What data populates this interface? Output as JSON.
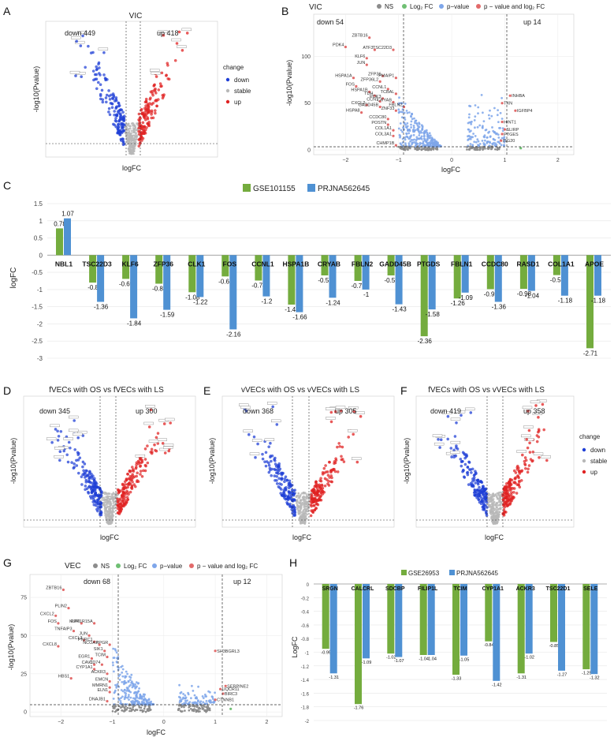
{
  "panels": {
    "A": {
      "letter": "A",
      "title": "VIC",
      "down_label": "down 449",
      "up_label": "up 418",
      "xlabel": "logFC",
      "ylabel": "-log10(Pvalue)",
      "legend": {
        "title": "change",
        "items": [
          "down",
          "stable",
          "up"
        ]
      }
    },
    "B": {
      "letter": "B",
      "title": "VIC",
      "down_label": "down 54",
      "up_label": "up 14",
      "xlabel": "logFC",
      "ylabel": "-log10(Pvalue)",
      "legend": {
        "items": [
          "NS",
          "Log₂ FC",
          "p−value",
          "p − value and log₂ FC"
        ]
      },
      "xticks": [
        "−2",
        "−1",
        "0",
        "1",
        "2"
      ],
      "yticks": [
        "0",
        "50",
        "100"
      ],
      "down_genes": [
        "ZBTB16",
        "PDK4",
        "ATF3",
        "TSC22D3",
        "KLF6",
        "JUN",
        "ZFP36",
        "PMAIP1",
        "HSPA1A",
        "ZFP36L2",
        "FOS",
        "CCNL1",
        "HSPA1B",
        "TCBAL",
        "TDH",
        "PDK3",
        "CCN1",
        "CRYAB",
        "CXCL2",
        "GADD45B",
        "FBLN2",
        "ZNF33",
        "HSPA8",
        "CCDC80",
        "POSTN",
        "COL1A1",
        "COL3A1",
        "CHMP1B"
      ],
      "up_genes": [
        "INHBA",
        "TXN",
        "IGFBP4",
        "HINT1",
        "SLIRP",
        "PTGES",
        "ISG20"
      ]
    },
    "D": {
      "letter": "D",
      "title": "fVECs with OS vs fVECs with LS",
      "down_label": "down 345",
      "up_label": "up 300",
      "xlabel": "logFC",
      "ylabel": "-log10(Pvalue)"
    },
    "E": {
      "letter": "E",
      "title": "vVECs with OS vs vVECs with LS",
      "down_label": "down 368",
      "up_label": "up 305",
      "xlabel": "logFC",
      "ylabel": "-log10(Pvalue)"
    },
    "F": {
      "letter": "F",
      "title": "fVECs with OS vs vVECs with LS",
      "down_label": "down 419",
      "up_label": "up 358",
      "xlabel": "logFC",
      "ylabel": "-log10(Pvalue)",
      "legend": {
        "title": "change",
        "items": [
          "down",
          "stable",
          "up"
        ]
      }
    },
    "G": {
      "letter": "G",
      "title": "VEC",
      "down_label": "down 68",
      "up_label": "up 12",
      "xlabel": "logFC",
      "ylabel": "-log10(Pvalue)",
      "legend": {
        "items": [
          "NS",
          "Log₂ FC",
          "p−value",
          "p − value and log₂ FC"
        ]
      },
      "xticks": [
        "−2",
        "−1",
        "0",
        "1",
        "2"
      ],
      "yticks": [
        "0",
        "25",
        "50",
        "75"
      ],
      "down_genes": [
        "ZBTB16",
        "PLIN2",
        "CXCL2",
        "FOS",
        "KLF6",
        "PPP1R15A",
        "TNFAIP3",
        "JUN",
        "CXCL3",
        "PNRC1",
        "CXCL8",
        "NCOA7",
        "RPGR",
        "SIK1",
        "EGR1",
        "CAV1",
        "CD74",
        "CYP1A1",
        "TCIM",
        "ACKR3",
        "HBS1",
        "EMCN",
        "MMRN1",
        "ELN1",
        "DNAJB1"
      ],
      "up_genes": [
        "SH3BGRL3",
        "SERPINE2",
        "UQCR11",
        "BIRC3",
        "CTNNB1"
      ]
    }
  },
  "colors": {
    "green": "#74ac3e",
    "blue": "#4f91d3",
    "down": "#1f3fd6",
    "up": "#e02222",
    "stable": "#b8b8b8",
    "ns": "#8c8c8c",
    "pval": "#7ea6ea",
    "both": "#e26a6a",
    "log2": "#6fbf73"
  },
  "chart_data": [
    {
      "panel": "C",
      "type": "bar",
      "letter": "C",
      "ylabel": "logFC",
      "ylim": [
        -3,
        1.5
      ],
      "yticks": [
        "1.5",
        "1",
        "0.5",
        "0",
        "-0.5",
        "-1",
        "-1.5",
        "-2",
        "-2.5",
        "-3"
      ],
      "categories": [
        "NBL1",
        "TSC22D3",
        "KLF6",
        "ZFP36",
        "CLK1",
        "FOS",
        "CCNL1",
        "HSPA1B",
        "CRYAB",
        "FBLN2",
        "GADD45B",
        "PTGDS",
        "FBLN1",
        "CCDC80",
        "RASD1",
        "COL1A1",
        "APOE"
      ],
      "series": [
        {
          "name": "GSE101155",
          "values": [
            0.78,
            -0.8,
            -0.69,
            -0.83,
            -1.08,
            -0.62,
            -0.74,
            -1.44,
            -0.59,
            -0.75,
            -0.59,
            -2.36,
            -1.26,
            -0.99,
            -0.98,
            -0.58,
            -2.71
          ]
        },
        {
          "name": "PRJNA562645",
          "values": [
            1.07,
            -1.36,
            -1.84,
            -1.59,
            -1.22,
            -2.16,
            -1.2,
            -1.66,
            -1.24,
            -1.0,
            -1.43,
            -1.58,
            -1.09,
            -1.36,
            -1.04,
            -1.18,
            -1.18
          ]
        }
      ],
      "labels": [
        [
          "0.78",
          "1.07"
        ],
        [
          "-0.8",
          "-1.36"
        ],
        [
          "-0.69",
          "-1.84"
        ],
        [
          "-0.83",
          "-1.59"
        ],
        [
          "-1.08",
          "-1.22"
        ],
        [
          "-0.62",
          "-2.16"
        ],
        [
          "-0.74",
          "-1.2"
        ],
        [
          "-1.44",
          "-1.66"
        ],
        [
          "-0.59",
          "-1.24"
        ],
        [
          "-0.75",
          "-1"
        ],
        [
          "-0.59",
          "-1.43"
        ],
        [
          "-2.36",
          "-1.58"
        ],
        [
          "-1.26",
          "-1.09"
        ],
        [
          "-0.99",
          "-1.36"
        ],
        [
          "-0.98",
          "-1.04"
        ],
        [
          "-0.58",
          "-1.18"
        ],
        [
          "-2.71",
          "-1.18"
        ]
      ]
    },
    {
      "panel": "H",
      "type": "bar",
      "letter": "H",
      "ylabel": "LogFC",
      "ylim": [
        -2,
        0
      ],
      "yticks": [
        "0",
        "-0.2",
        "-0.4",
        "-0.6",
        "-0.8",
        "-1",
        "-1.2",
        "-1.4",
        "-1.6",
        "-1.8",
        "-2"
      ],
      "categories": [
        "SRGN",
        "CALCRL",
        "SDCBP",
        "FILIP1L",
        "TCIM",
        "CYP1A1",
        "ACKR3",
        "TSC22D1",
        "SELE"
      ],
      "series": [
        {
          "name": "GSE26953",
          "values": [
            -0.95,
            -1.76,
            -1.02,
            -1.04,
            -1.33,
            -0.84,
            -1.31,
            -0.85,
            -1.25
          ]
        },
        {
          "name": "PRJNA562645",
          "values": [
            -1.31,
            -1.09,
            -1.07,
            -1.04,
            -1.05,
            -1.42,
            -1.02,
            -1.27,
            -1.32
          ]
        }
      ],
      "labels": [
        [
          "-0.95",
          "-1.31"
        ],
        [
          "-1.76",
          "-1.09"
        ],
        [
          "-1.02",
          "-1.07"
        ],
        [
          "-1.04",
          "-1.04"
        ],
        [
          "-1.33",
          "-1.05"
        ],
        [
          "-0.84",
          "-1.42"
        ],
        [
          "-1.31",
          "-1.02"
        ],
        [
          "-0.85",
          "-1.27"
        ],
        [
          "-1.25",
          "-1.32"
        ]
      ]
    }
  ]
}
